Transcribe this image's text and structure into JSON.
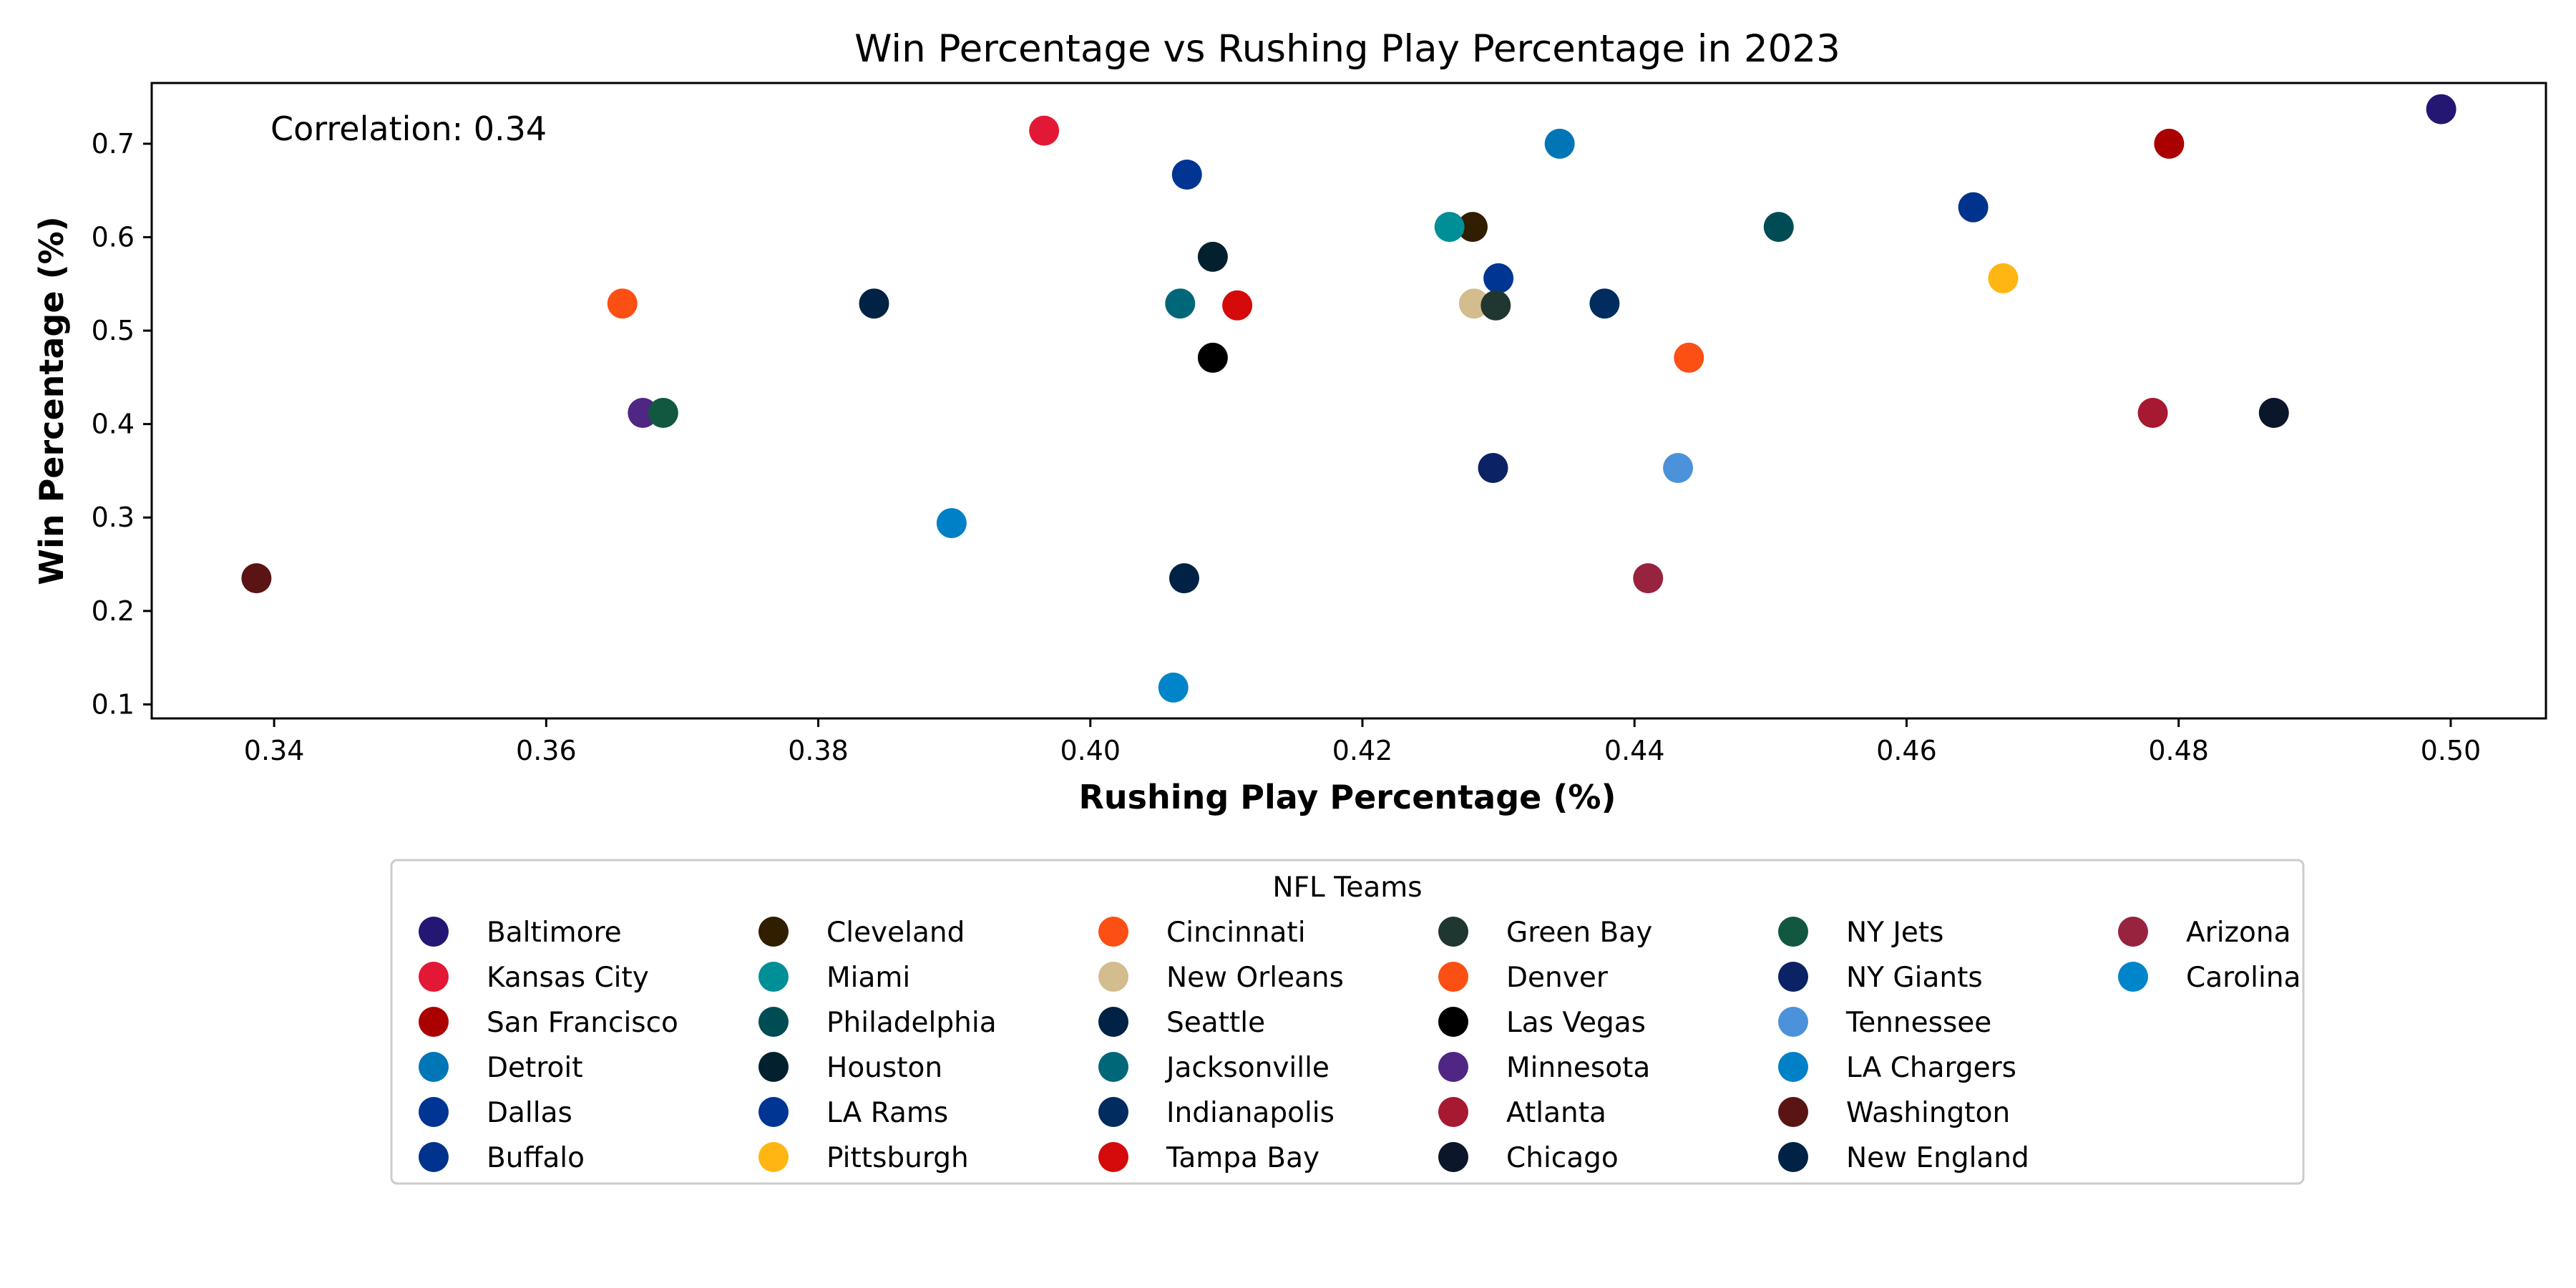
{
  "chart_data": {
    "type": "scatter",
    "title": "Win Percentage vs Rushing Play Percentage in 2023",
    "xlabel": "Rushing Play Percentage (%)",
    "ylabel": "Win Percentage (%)",
    "xlim": [
      0.331,
      0.507
    ],
    "ylim": [
      0.085,
      0.765
    ],
    "xticks": [
      0.34,
      0.36,
      0.38,
      0.4,
      0.42,
      0.44,
      0.46,
      0.48,
      0.5
    ],
    "xtick_labels": [
      "0.34",
      "0.36",
      "0.38",
      "0.40",
      "0.42",
      "0.44",
      "0.46",
      "0.48",
      "0.50"
    ],
    "yticks": [
      0.1,
      0.2,
      0.3,
      0.4,
      0.5,
      0.6,
      0.7
    ],
    "ytick_labels": [
      "0.1",
      "0.2",
      "0.3",
      "0.4",
      "0.5",
      "0.6",
      "0.7"
    ],
    "grid": false,
    "annotation": "Correlation: 0.34",
    "legend_title": "NFL Teams",
    "legend_placement": "bottom-center",
    "legend_columns": 6,
    "series": [
      {
        "name": "Baltimore",
        "color": "#241773",
        "x": 0.4993,
        "y": 0.737
      },
      {
        "name": "Kansas City",
        "color": "#E31837",
        "x": 0.3966,
        "y": 0.714
      },
      {
        "name": "San Francisco",
        "color": "#AA0000",
        "x": 0.4793,
        "y": 0.7
      },
      {
        "name": "Detroit",
        "color": "#0076B6",
        "x": 0.4345,
        "y": 0.7
      },
      {
        "name": "Dallas",
        "color": "#003594",
        "x": 0.4071,
        "y": 0.667
      },
      {
        "name": "Buffalo",
        "color": "#00338D",
        "x": 0.4649,
        "y": 0.632
      },
      {
        "name": "Cleveland",
        "color": "#311D00",
        "x": 0.4281,
        "y": 0.611
      },
      {
        "name": "Miami",
        "color": "#008E97",
        "x": 0.4264,
        "y": 0.611
      },
      {
        "name": "Philadelphia",
        "color": "#004C54",
        "x": 0.4506,
        "y": 0.611
      },
      {
        "name": "Houston",
        "color": "#03202F",
        "x": 0.409,
        "y": 0.579
      },
      {
        "name": "LA Rams",
        "color": "#003594",
        "x": 0.43,
        "y": 0.556
      },
      {
        "name": "Pittsburgh",
        "color": "#FFB612",
        "x": 0.4671,
        "y": 0.556
      },
      {
        "name": "Cincinnati",
        "color": "#FB4F14",
        "x": 0.3656,
        "y": 0.529
      },
      {
        "name": "New Orleans",
        "color": "#D3BC8D",
        "x": 0.4282,
        "y": 0.529
      },
      {
        "name": "Seattle",
        "color": "#002244",
        "x": 0.3841,
        "y": 0.529
      },
      {
        "name": "Jacksonville",
        "color": "#006778",
        "x": 0.4066,
        "y": 0.529
      },
      {
        "name": "Indianapolis",
        "color": "#002C5F",
        "x": 0.4378,
        "y": 0.529
      },
      {
        "name": "Tampa Bay",
        "color": "#D50A0A",
        "x": 0.4108,
        "y": 0.527
      },
      {
        "name": "Green Bay",
        "color": "#203731",
        "x": 0.4298,
        "y": 0.527
      },
      {
        "name": "Denver",
        "color": "#FB4F14",
        "x": 0.444,
        "y": 0.471
      },
      {
        "name": "Las Vegas",
        "color": "#000000",
        "x": 0.409,
        "y": 0.471
      },
      {
        "name": "Minnesota",
        "color": "#4F2683",
        "x": 0.3671,
        "y": 0.412
      },
      {
        "name": "Atlanta",
        "color": "#A71930",
        "x": 0.4781,
        "y": 0.412
      },
      {
        "name": "Chicago",
        "color": "#0B162A",
        "x": 0.487,
        "y": 0.412
      },
      {
        "name": "NY Jets",
        "color": "#125740",
        "x": 0.3686,
        "y": 0.412
      },
      {
        "name": "NY Giants",
        "color": "#0B2265",
        "x": 0.4296,
        "y": 0.353
      },
      {
        "name": "Tennessee",
        "color": "#4B92DB",
        "x": 0.4432,
        "y": 0.353
      },
      {
        "name": "LA Chargers",
        "color": "#0080C6",
        "x": 0.3898,
        "y": 0.294
      },
      {
        "name": "Washington",
        "color": "#5A1414",
        "x": 0.3387,
        "y": 0.235
      },
      {
        "name": "New England",
        "color": "#002244",
        "x": 0.4069,
        "y": 0.235
      },
      {
        "name": "Arizona",
        "color": "#97233F",
        "x": 0.441,
        "y": 0.235
      },
      {
        "name": "Carolina",
        "color": "#0085CA",
        "x": 0.4061,
        "y": 0.118
      }
    ]
  }
}
